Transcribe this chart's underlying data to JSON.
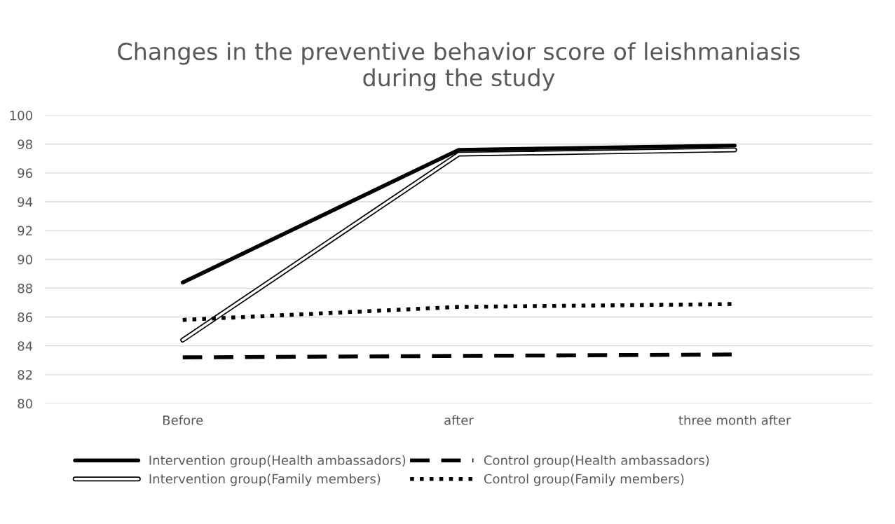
{
  "chart_data": {
    "type": "line",
    "title": "Changes in the preventive behavior score of leishmaniasis\nduring the study",
    "categories": [
      "Before",
      "after",
      "three month after"
    ],
    "series": [
      {
        "name": "Intervention group(Health ambassadors)",
        "color": "#000000",
        "line_style": "solid",
        "values": [
          88.4,
          97.6,
          97.9
        ]
      },
      {
        "name": "Control group(Health ambassadors)",
        "color": "#000000",
        "line_style": "dashed",
        "values": [
          83.2,
          83.3,
          83.4
        ]
      },
      {
        "name": "Intervention group(Family members)",
        "color": "#000000",
        "line_style": "solid",
        "values": [
          84.4,
          97.3,
          97.6
        ]
      },
      {
        "name": "Control group(Family members)",
        "color": "#000000",
        "line_style": "dotted",
        "values": [
          85.8,
          86.7,
          86.9
        ]
      }
    ],
    "ylim": [
      80,
      100
    ],
    "yticks": [
      80,
      82,
      84,
      86,
      88,
      90,
      92,
      94,
      96,
      98,
      100
    ],
    "grid": "y",
    "legend": "bottom",
    "marker": "none"
  }
}
